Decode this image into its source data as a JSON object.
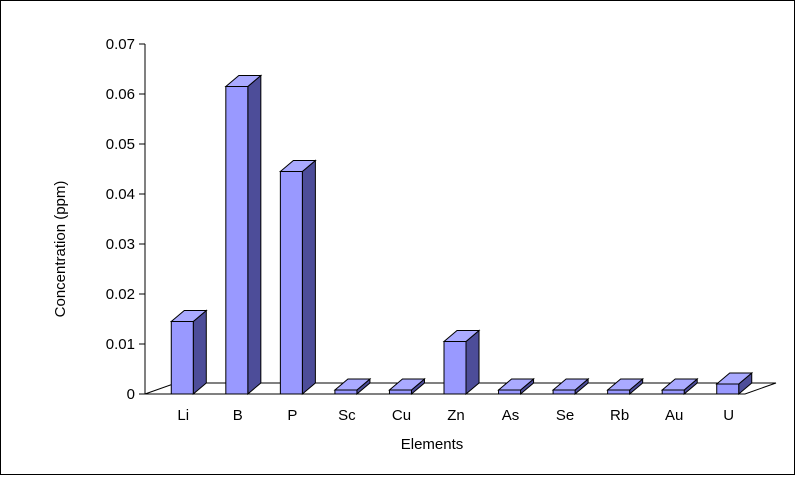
{
  "chart_data": {
    "type": "bar",
    "style": "3d-column",
    "categories": [
      "Li",
      "B",
      "P",
      "Sc",
      "Cu",
      "Zn",
      "As",
      "Se",
      "Rb",
      "Au",
      "U"
    ],
    "values": [
      0.0145,
      0.0615,
      0.0445,
      0.0008,
      0.0008,
      0.0105,
      0.0008,
      0.0008,
      0.0008,
      0.0008,
      0.002
    ],
    "xlabel": "Elements",
    "ylabel": "Concentration (ppm)",
    "ylim": [
      0,
      0.07
    ],
    "yticks": [
      "0",
      "0.01",
      "0.02",
      "0.03",
      "0.04",
      "0.05",
      "0.06",
      "0.07"
    ],
    "grid": false,
    "legend": "none",
    "colors": {
      "front": "#9999FF",
      "top": "#AAAAFF",
      "side": "#4D4D99",
      "outline": "#000000"
    }
  }
}
